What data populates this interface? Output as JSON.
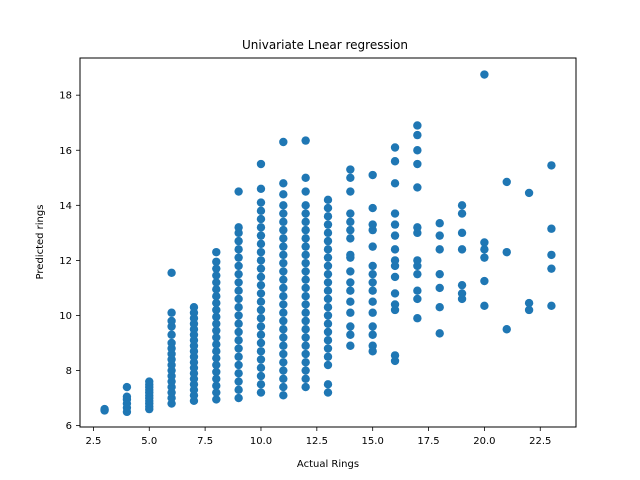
{
  "chart_data": {
    "type": "scatter",
    "title": "Univariate Lnear regression",
    "xlabel": "Actual Rings",
    "ylabel": "Predicted rings",
    "xlim": [
      1.9,
      24.1
    ],
    "ylim": [
      5.95,
      19.35
    ],
    "xticks": [
      2.5,
      5.0,
      7.5,
      10.0,
      12.5,
      15.0,
      17.5,
      20.0,
      22.5
    ],
    "xtick_labels": [
      "2.5",
      "5.0",
      "7.5",
      "10.0",
      "12.5",
      "15.0",
      "17.5",
      "20.0",
      "22.5"
    ],
    "yticks": [
      6,
      8,
      10,
      12,
      14,
      16,
      18
    ],
    "ytick_labels": [
      "6",
      "8",
      "10",
      "12",
      "14",
      "16",
      "18"
    ],
    "grid": false,
    "marker_color": "#1f77b4",
    "series": [
      {
        "points": [
          [
            3,
            6.55
          ],
          [
            3,
            6.6
          ],
          [
            4,
            6.5
          ],
          [
            4,
            6.65
          ],
          [
            4,
            6.8
          ],
          [
            4,
            6.95
          ],
          [
            4,
            7.05
          ],
          [
            4,
            7.4
          ],
          [
            5,
            6.6
          ],
          [
            5,
            6.7
          ],
          [
            5,
            6.8
          ],
          [
            5,
            6.9
          ],
          [
            5,
            7.0
          ],
          [
            5,
            7.1
          ],
          [
            5,
            7.2
          ],
          [
            5,
            7.3
          ],
          [
            5,
            7.4
          ],
          [
            5,
            7.5
          ],
          [
            5,
            7.6
          ],
          [
            6,
            6.8
          ],
          [
            6,
            7.0
          ],
          [
            6,
            7.2
          ],
          [
            6,
            7.4
          ],
          [
            6,
            7.6
          ],
          [
            6,
            7.8
          ],
          [
            6,
            8.0
          ],
          [
            6,
            8.2
          ],
          [
            6,
            8.4
          ],
          [
            6,
            8.6
          ],
          [
            6,
            8.8
          ],
          [
            6,
            9.0
          ],
          [
            6,
            9.3
          ],
          [
            6,
            9.6
          ],
          [
            6,
            9.8
          ],
          [
            6,
            10.1
          ],
          [
            6,
            11.55
          ],
          [
            7,
            6.9
          ],
          [
            7,
            7.1
          ],
          [
            7,
            7.3
          ],
          [
            7,
            7.5
          ],
          [
            7,
            7.7
          ],
          [
            7,
            7.9
          ],
          [
            7,
            8.1
          ],
          [
            7,
            8.3
          ],
          [
            7,
            8.5
          ],
          [
            7,
            8.7
          ],
          [
            7,
            8.9
          ],
          [
            7,
            9.1
          ],
          [
            7,
            9.3
          ],
          [
            7,
            9.5
          ],
          [
            7,
            9.7
          ],
          [
            7,
            9.9
          ],
          [
            7,
            10.1
          ],
          [
            7,
            10.3
          ],
          [
            8,
            6.95
          ],
          [
            8,
            7.2
          ],
          [
            8,
            7.45
          ],
          [
            8,
            7.7
          ],
          [
            8,
            7.95
          ],
          [
            8,
            8.2
          ],
          [
            8,
            8.45
          ],
          [
            8,
            8.7
          ],
          [
            8,
            8.95
          ],
          [
            8,
            9.2
          ],
          [
            8,
            9.45
          ],
          [
            8,
            9.7
          ],
          [
            8,
            9.95
          ],
          [
            8,
            10.2
          ],
          [
            8,
            10.45
          ],
          [
            8,
            10.7
          ],
          [
            8,
            10.95
          ],
          [
            8,
            11.2
          ],
          [
            8,
            11.45
          ],
          [
            8,
            11.7
          ],
          [
            8,
            11.95
          ],
          [
            8,
            12.3
          ],
          [
            9,
            7.0
          ],
          [
            9,
            7.3
          ],
          [
            9,
            7.6
          ],
          [
            9,
            7.9
          ],
          [
            9,
            8.2
          ],
          [
            9,
            8.5
          ],
          [
            9,
            8.8
          ],
          [
            9,
            9.1
          ],
          [
            9,
            9.4
          ],
          [
            9,
            9.7
          ],
          [
            9,
            10.0
          ],
          [
            9,
            10.3
          ],
          [
            9,
            10.6
          ],
          [
            9,
            10.9
          ],
          [
            9,
            11.2
          ],
          [
            9,
            11.5
          ],
          [
            9,
            11.8
          ],
          [
            9,
            12.1
          ],
          [
            9,
            12.4
          ],
          [
            9,
            12.7
          ],
          [
            9,
            13.0
          ],
          [
            9,
            13.2
          ],
          [
            9,
            14.5
          ],
          [
            10,
            7.2
          ],
          [
            10,
            7.5
          ],
          [
            10,
            7.8
          ],
          [
            10,
            8.1
          ],
          [
            10,
            8.4
          ],
          [
            10,
            8.7
          ],
          [
            10,
            9.0
          ],
          [
            10,
            9.3
          ],
          [
            10,
            9.6
          ],
          [
            10,
            9.9
          ],
          [
            10,
            10.2
          ],
          [
            10,
            10.5
          ],
          [
            10,
            10.8
          ],
          [
            10,
            11.1
          ],
          [
            10,
            11.4
          ],
          [
            10,
            11.7
          ],
          [
            10,
            12.0
          ],
          [
            10,
            12.3
          ],
          [
            10,
            12.6
          ],
          [
            10,
            12.9
          ],
          [
            10,
            13.2
          ],
          [
            10,
            13.5
          ],
          [
            10,
            13.8
          ],
          [
            10,
            14.1
          ],
          [
            10,
            14.6
          ],
          [
            10,
            15.5
          ],
          [
            11,
            7.1
          ],
          [
            11,
            7.4
          ],
          [
            11,
            7.7
          ],
          [
            11,
            8.0
          ],
          [
            11,
            8.3
          ],
          [
            11,
            8.6
          ],
          [
            11,
            8.9
          ],
          [
            11,
            9.2
          ],
          [
            11,
            9.5
          ],
          [
            11,
            9.8
          ],
          [
            11,
            10.1
          ],
          [
            11,
            10.4
          ],
          [
            11,
            10.7
          ],
          [
            11,
            11.0
          ],
          [
            11,
            11.3
          ],
          [
            11,
            11.6
          ],
          [
            11,
            11.9
          ],
          [
            11,
            12.2
          ],
          [
            11,
            12.5
          ],
          [
            11,
            12.8
          ],
          [
            11,
            13.1
          ],
          [
            11,
            13.4
          ],
          [
            11,
            13.7
          ],
          [
            11,
            14.0
          ],
          [
            11,
            14.4
          ],
          [
            11,
            14.8
          ],
          [
            11,
            16.3
          ],
          [
            12,
            7.4
          ],
          [
            12,
            7.7
          ],
          [
            12,
            8.0
          ],
          [
            12,
            8.3
          ],
          [
            12,
            8.6
          ],
          [
            12,
            8.9
          ],
          [
            12,
            9.2
          ],
          [
            12,
            9.5
          ],
          [
            12,
            9.8
          ],
          [
            12,
            10.1
          ],
          [
            12,
            10.4
          ],
          [
            12,
            10.7
          ],
          [
            12,
            11.0
          ],
          [
            12,
            11.3
          ],
          [
            12,
            11.6
          ],
          [
            12,
            11.9
          ],
          [
            12,
            12.2
          ],
          [
            12,
            12.5
          ],
          [
            12,
            12.8
          ],
          [
            12,
            13.1
          ],
          [
            12,
            13.4
          ],
          [
            12,
            13.7
          ],
          [
            12,
            14.0
          ],
          [
            12,
            14.5
          ],
          [
            12,
            15.0
          ],
          [
            12,
            16.35
          ],
          [
            13,
            7.2
          ],
          [
            13,
            7.5
          ],
          [
            13,
            8.2
          ],
          [
            13,
            8.5
          ],
          [
            13,
            8.8
          ],
          [
            13,
            9.1
          ],
          [
            13,
            9.4
          ],
          [
            13,
            9.7
          ],
          [
            13,
            10.0
          ],
          [
            13,
            10.3
          ],
          [
            13,
            10.6
          ],
          [
            13,
            10.9
          ],
          [
            13,
            11.2
          ],
          [
            13,
            11.5
          ],
          [
            13,
            11.8
          ],
          [
            13,
            12.1
          ],
          [
            13,
            12.4
          ],
          [
            13,
            12.7
          ],
          [
            13,
            13.0
          ],
          [
            13,
            13.3
          ],
          [
            13,
            13.6
          ],
          [
            13,
            13.9
          ],
          [
            13,
            14.2
          ],
          [
            14,
            8.9
          ],
          [
            14,
            9.3
          ],
          [
            14,
            9.6
          ],
          [
            14,
            10.1
          ],
          [
            14,
            10.5
          ],
          [
            14,
            10.9
          ],
          [
            14,
            11.2
          ],
          [
            14,
            11.6
          ],
          [
            14,
            12.1
          ],
          [
            14,
            12.2
          ],
          [
            14,
            12.8
          ],
          [
            14,
            13.1
          ],
          [
            14,
            13.4
          ],
          [
            14,
            13.7
          ],
          [
            14,
            14.5
          ],
          [
            14,
            15.0
          ],
          [
            14,
            15.3
          ],
          [
            15,
            8.7
          ],
          [
            15,
            8.9
          ],
          [
            15,
            9.3
          ],
          [
            15,
            9.6
          ],
          [
            15,
            10.1
          ],
          [
            15,
            10.5
          ],
          [
            15,
            10.9
          ],
          [
            15,
            11.2
          ],
          [
            15,
            11.5
          ],
          [
            15,
            11.8
          ],
          [
            15,
            12.5
          ],
          [
            15,
            13.1
          ],
          [
            15,
            13.3
          ],
          [
            15,
            13.9
          ],
          [
            15,
            15.1
          ],
          [
            16,
            8.35
          ],
          [
            16,
            8.55
          ],
          [
            16,
            10.2
          ],
          [
            16,
            10.4
          ],
          [
            16,
            10.8
          ],
          [
            16,
            11.4
          ],
          [
            16,
            11.8
          ],
          [
            16,
            12.0
          ],
          [
            16,
            12.4
          ],
          [
            16,
            12.9
          ],
          [
            16,
            13.3
          ],
          [
            16,
            13.7
          ],
          [
            16,
            14.8
          ],
          [
            16,
            15.6
          ],
          [
            16,
            16.1
          ],
          [
            17,
            9.9
          ],
          [
            17,
            10.6
          ],
          [
            17,
            10.9
          ],
          [
            17,
            11.5
          ],
          [
            17,
            11.8
          ],
          [
            17,
            12.0
          ],
          [
            17,
            13.0
          ],
          [
            17,
            13.2
          ],
          [
            17,
            14.65
          ],
          [
            17,
            15.5
          ],
          [
            17,
            16.0
          ],
          [
            17,
            16.55
          ],
          [
            17,
            16.9
          ],
          [
            18,
            9.35
          ],
          [
            18,
            10.3
          ],
          [
            18,
            11.0
          ],
          [
            18,
            11.5
          ],
          [
            18,
            12.4
          ],
          [
            18,
            12.9
          ],
          [
            18,
            13.35
          ],
          [
            19,
            10.6
          ],
          [
            19,
            10.8
          ],
          [
            19,
            11.1
          ],
          [
            19,
            12.4
          ],
          [
            19,
            13.0
          ],
          [
            19,
            13.7
          ],
          [
            19,
            14.0
          ],
          [
            20,
            10.35
          ],
          [
            20,
            11.25
          ],
          [
            20,
            12.1
          ],
          [
            20,
            12.4
          ],
          [
            20,
            12.65
          ],
          [
            20,
            18.75
          ],
          [
            21,
            9.5
          ],
          [
            21,
            12.3
          ],
          [
            21,
            14.85
          ],
          [
            22,
            10.2
          ],
          [
            22,
            10.45
          ],
          [
            22,
            14.45
          ],
          [
            23,
            10.35
          ],
          [
            23,
            11.7
          ],
          [
            23,
            12.2
          ],
          [
            23,
            13.15
          ],
          [
            23,
            15.45
          ]
        ]
      }
    ]
  }
}
